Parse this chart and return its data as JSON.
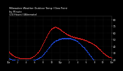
{
  "title": "Milwaukee Weather Outdoor Temp / Dew Point",
  "subtitle": "by Minute",
  "subtitle2": "(24 Hours) (Alternate)",
  "bg_color": "#000000",
  "text_color": "#ffffff",
  "grid_color": "#444444",
  "red_color": "#ff2222",
  "blue_color": "#2255ff",
  "ylim": [
    20,
    85
  ],
  "yticks": [
    20,
    30,
    40,
    50,
    60,
    70,
    80
  ],
  "n_points": 1440,
  "temp_data": [
    32,
    31,
    31,
    30,
    30,
    29,
    29,
    28,
    28,
    27,
    27,
    27,
    26,
    26,
    26,
    25,
    25,
    25,
    25,
    24,
    24,
    24,
    24,
    24,
    24,
    23,
    23,
    23,
    23,
    23,
    23,
    22,
    22,
    22,
    22,
    22,
    22,
    22,
    22,
    22,
    22,
    22,
    22,
    22,
    22,
    22,
    22,
    22,
    22,
    22,
    22,
    22,
    22,
    22,
    22,
    22,
    22,
    22,
    22,
    22,
    22,
    22,
    22,
    23,
    23,
    23,
    23,
    24,
    24,
    24,
    24,
    25,
    25,
    25,
    26,
    26,
    27,
    27,
    28,
    28,
    29,
    29,
    30,
    30,
    31,
    31,
    32,
    33,
    33,
    34,
    35,
    36,
    37,
    38,
    39,
    40,
    41,
    42,
    43,
    44,
    45,
    46,
    47,
    48,
    49,
    50,
    51,
    52,
    53,
    54,
    55,
    56,
    57,
    58,
    59,
    60,
    61,
    62,
    63,
    63,
    64,
    65,
    65,
    66,
    66,
    67,
    67,
    67,
    68,
    68,
    68,
    68,
    68,
    69,
    69,
    69,
    69,
    69,
    68,
    68,
    68,
    68,
    68,
    67,
    67,
    67,
    66,
    66,
    66,
    65,
    65,
    65,
    64,
    64,
    63,
    63,
    63,
    62,
    62,
    62,
    61,
    61,
    61,
    60,
    60,
    60,
    59,
    59,
    59,
    58,
    58,
    58,
    57,
    57,
    57,
    57,
    56,
    56,
    56,
    56,
    55,
    55,
    55,
    55,
    55,
    54,
    54,
    54,
    54,
    54,
    54,
    54,
    53,
    53,
    53,
    53,
    53,
    53,
    53,
    53,
    52,
    52,
    52,
    52,
    52,
    52,
    52,
    52,
    51,
    51,
    51,
    51,
    51,
    51,
    51,
    50,
    50,
    50,
    50,
    50,
    50,
    49,
    49,
    49,
    49,
    49,
    48,
    48,
    48,
    48,
    47,
    47,
    47,
    47,
    46,
    46,
    46,
    46,
    45,
    45,
    45,
    45,
    44,
    44,
    44,
    43,
    43,
    43,
    43,
    42,
    42,
    42,
    41,
    41,
    41,
    40,
    40,
    39,
    39,
    38,
    38,
    37,
    37,
    36,
    36,
    35,
    35,
    34,
    34,
    33,
    33,
    32,
    32,
    31,
    31,
    30,
    30,
    29,
    29,
    28,
    28,
    27,
    27,
    27,
    26,
    26,
    26,
    25,
    25,
    25,
    25,
    24,
    24,
    24,
    24,
    24,
    24,
    23,
    23,
    23
  ],
  "dew_data": [
    22,
    22,
    22,
    21,
    21,
    21,
    21,
    21,
    20,
    20,
    20,
    20,
    20,
    20,
    20,
    20,
    20,
    20,
    19,
    19,
    19,
    19,
    19,
    19,
    19,
    19,
    19,
    19,
    19,
    19,
    19,
    19,
    19,
    19,
    19,
    19,
    19,
    19,
    19,
    19,
    19,
    19,
    19,
    19,
    19,
    19,
    19,
    19,
    19,
    19,
    19,
    19,
    19,
    19,
    19,
    19,
    19,
    19,
    19,
    19,
    19,
    19,
    19,
    19,
    19,
    19,
    19,
    19,
    19,
    19,
    19,
    19,
    20,
    20,
    20,
    20,
    20,
    20,
    20,
    21,
    21,
    21,
    21,
    21,
    22,
    22,
    22,
    22,
    23,
    23,
    23,
    24,
    24,
    24,
    25,
    25,
    26,
    26,
    27,
    27,
    28,
    28,
    29,
    30,
    30,
    31,
    31,
    32,
    33,
    33,
    34,
    35,
    35,
    36,
    37,
    37,
    38,
    39,
    39,
    40,
    41,
    41,
    42,
    43,
    43,
    44,
    44,
    45,
    45,
    46,
    46,
    47,
    47,
    47,
    48,
    48,
    48,
    49,
    49,
    49,
    49,
    50,
    50,
    50,
    50,
    50,
    51,
    51,
    51,
    51,
    51,
    51,
    51,
    51,
    52,
    52,
    52,
    52,
    52,
    52,
    52,
    52,
    52,
    52,
    52,
    52,
    52,
    52,
    52,
    52,
    52,
    52,
    52,
    52,
    52,
    52,
    52,
    52,
    52,
    52,
    52,
    52,
    51,
    51,
    51,
    51,
    51,
    51,
    51,
    50,
    50,
    50,
    50,
    49,
    49,
    49,
    48,
    48,
    48,
    47,
    47,
    47,
    46,
    46,
    45,
    45,
    44,
    44,
    43,
    43,
    42,
    42,
    41,
    41,
    40,
    40,
    39,
    39,
    38,
    38,
    37,
    37,
    36,
    35,
    35,
    34,
    33,
    33,
    32,
    31,
    31,
    30,
    29,
    29,
    28,
    27,
    27,
    26,
    25,
    25,
    24,
    23,
    23,
    22,
    21,
    21,
    20,
    19,
    19,
    18,
    18,
    17,
    17,
    16,
    16,
    15,
    15,
    14,
    14,
    14,
    13,
    13,
    13,
    12,
    12,
    12,
    12,
    11,
    11,
    11,
    11,
    11,
    11,
    10,
    10,
    10,
    10,
    10,
    10,
    10,
    10,
    10,
    10,
    10,
    10,
    9,
    9,
    9,
    9,
    9,
    9,
    9,
    9,
    9,
    9,
    9,
    9,
    9,
    9,
    9
  ]
}
